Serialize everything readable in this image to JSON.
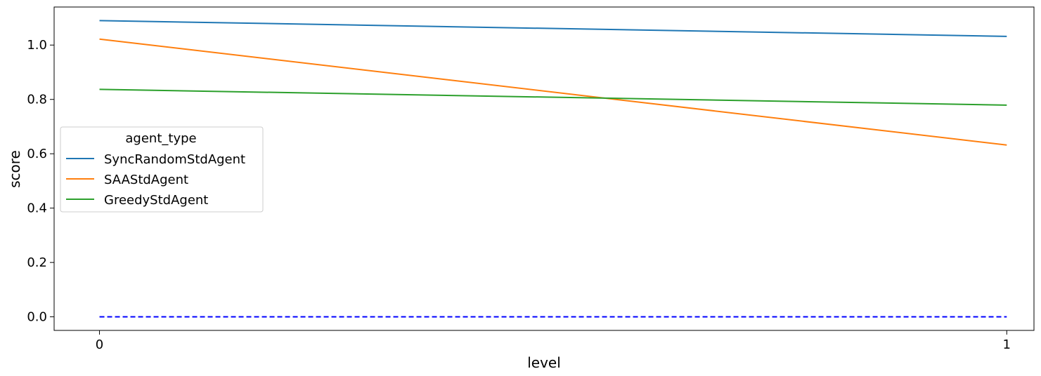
{
  "chart_data": {
    "type": "line",
    "title": "",
    "xlabel": "level",
    "ylabel": "score",
    "x": [
      0,
      1
    ],
    "xticks": [
      "0",
      "1"
    ],
    "yticks": [
      "0.0",
      "0.2",
      "0.4",
      "0.6",
      "0.8",
      "1.0"
    ],
    "xlim": [
      -0.05,
      1.03
    ],
    "ylim": [
      -0.05,
      1.14
    ],
    "grid": false,
    "series": [
      {
        "name": "SyncRandomStdAgent",
        "values": [
          1.09,
          1.032
        ],
        "color": "#1f77b4",
        "style": "solid"
      },
      {
        "name": "SAAStdAgent",
        "values": [
          1.022,
          0.632
        ],
        "color": "#ff7f0e",
        "style": "solid"
      },
      {
        "name": "GreedyStdAgent",
        "values": [
          0.837,
          0.779
        ],
        "color": "#2ca02c",
        "style": "solid"
      }
    ],
    "reference_line": {
      "values": [
        0.0,
        0.0
      ],
      "color": "#0000ff",
      "style": "dashed"
    },
    "legend": {
      "title": "agent_type",
      "placement": "center-left"
    }
  }
}
